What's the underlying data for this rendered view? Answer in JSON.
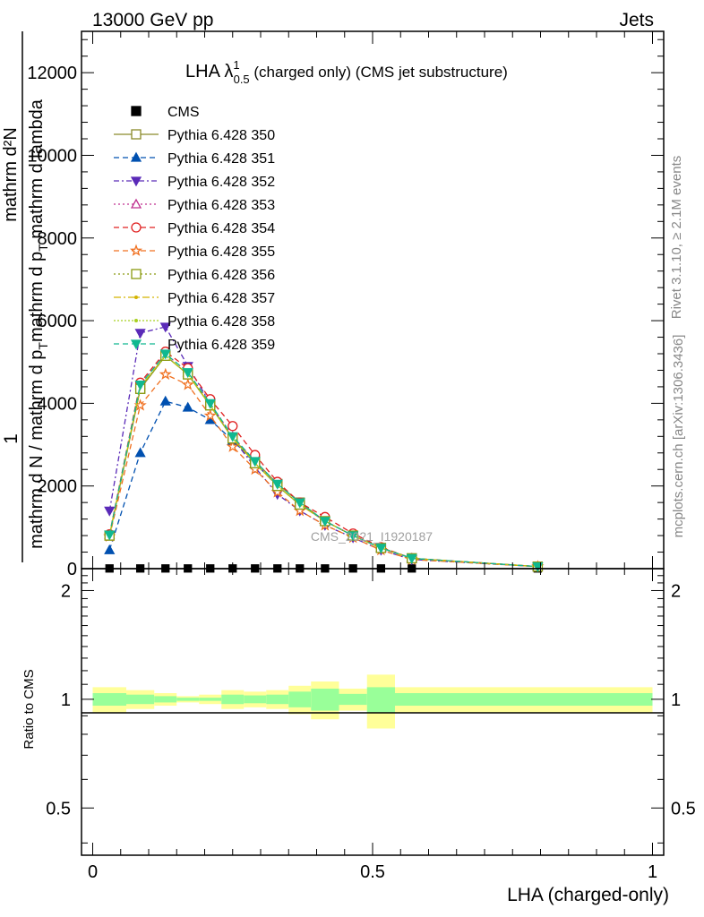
{
  "header": {
    "left": "13000 GeV pp",
    "right": "Jets"
  },
  "side": {
    "rivet": "Rivet 3.1.10, ≥ 2.1M events",
    "mcplots": "mcplots.cern.ch [arXiv:1306.3436]"
  },
  "title": {
    "main": "LHA λ",
    "sup": "1",
    "sub": "0.5",
    "rest": " (charged only) (CMS jet substructure)"
  },
  "ylabel": {
    "one": "1",
    "numerator": "mathrm d²N",
    "denominator_a": "mathrm d N / mathrm d p",
    "denominator_b": "mathrm d p",
    "denominator_sub": "T",
    "denominator_c": " mathrm d lambda",
    "ratio": "Ratio to CMS"
  },
  "xlabel": "LHA (charged-only)",
  "watermark": "CMS_2021_I1920187",
  "colors": {
    "band_inner": "#99ff99",
    "band_outer": "#ffff99",
    "ref": "#000000"
  },
  "chart_data": {
    "type": "line",
    "xlim": [
      -0.02,
      1.02
    ],
    "main_ylim": [
      0,
      13000
    ],
    "ratio_ylim": [
      0.37,
      2.3
    ],
    "main_yticks": [
      0,
      2000,
      4000,
      6000,
      8000,
      10000,
      12000
    ],
    "main_ytick_labels": [
      "0",
      "2000",
      "4000",
      "6000",
      "8000",
      "10000",
      "12000"
    ],
    "ratio_yticks": [
      0.5,
      1,
      2
    ],
    "ratio_ytick_labels": [
      "0.5",
      "1",
      "2"
    ],
    "xticks": [
      0,
      0.5,
      1
    ],
    "xtick_labels": [
      "0",
      "0.5",
      "1"
    ],
    "x": [
      0.03,
      0.085,
      0.13,
      0.17,
      0.21,
      0.25,
      0.29,
      0.33,
      0.37,
      0.415,
      0.465,
      0.515,
      0.57,
      0.795
    ],
    "bin_edges": [
      0.0,
      0.06,
      0.11,
      0.15,
      0.19,
      0.23,
      0.27,
      0.31,
      0.35,
      0.39,
      0.44,
      0.49,
      0.54,
      0.6,
      1.0
    ],
    "ratio_band_inner": [
      0.04,
      0.03,
      0.02,
      0.01,
      0.01,
      0.03,
      0.025,
      0.03,
      0.05,
      0.07,
      0.035,
      0.08,
      0.04,
      0.04
    ],
    "ratio_band_outer": [
      0.08,
      0.06,
      0.04,
      0.02,
      0.03,
      0.06,
      0.05,
      0.06,
      0.09,
      0.12,
      0.07,
      0.17,
      0.08,
      0.08
    ],
    "series": [
      {
        "name": "CMS",
        "color": "#000000",
        "marker": "square-filled",
        "dash": "none",
        "line": false,
        "values": [
          5,
          5,
          5,
          5,
          5,
          5,
          5,
          5,
          5,
          5,
          5,
          5,
          5,
          5
        ]
      },
      {
        "name": "Pythia 6.428 350",
        "color": "#8a8a2a",
        "marker": "square-open",
        "dash": "none",
        "line": true,
        "values": [
          800,
          4350,
          5150,
          4700,
          3950,
          3150,
          2600,
          2050,
          1600,
          1150,
          800,
          500,
          250,
          50
        ]
      },
      {
        "name": "Pythia 6.428 351",
        "color": "#0050b0",
        "marker": "triangle-up-filled",
        "dash": "6,4",
        "line": true,
        "values": [
          450,
          2800,
          4050,
          3900,
          3600,
          3100,
          2550,
          2000,
          1550,
          1150,
          800,
          500,
          250,
          50
        ]
      },
      {
        "name": "Pythia 6.428 352",
        "color": "#5a2ab8",
        "marker": "triangle-down-filled",
        "dash": "6,3,2,3",
        "line": true,
        "values": [
          1400,
          5700,
          5850,
          4900,
          4000,
          3150,
          2450,
          1800,
          1400,
          1050,
          750,
          450,
          220,
          50
        ]
      },
      {
        "name": "Pythia 6.428 353",
        "color": "#c03090",
        "marker": "triangle-up-open",
        "dash": "2,3",
        "line": true,
        "values": [
          820,
          4450,
          5200,
          4750,
          4000,
          3200,
          2600,
          2000,
          1550,
          1150,
          800,
          500,
          250,
          50
        ]
      },
      {
        "name": "Pythia 6.428 354",
        "color": "#e02020",
        "marker": "circle-open",
        "dash": "6,4",
        "line": true,
        "values": [
          830,
          4500,
          5250,
          4850,
          4100,
          3450,
          2750,
          2100,
          1600,
          1250,
          850,
          520,
          250,
          50
        ]
      },
      {
        "name": "Pythia 6.428 355",
        "color": "#f07020",
        "marker": "star-open",
        "dash": "6,4",
        "line": true,
        "values": [
          780,
          3950,
          4700,
          4450,
          3700,
          2950,
          2400,
          1850,
          1400,
          1050,
          750,
          450,
          220,
          50
        ]
      },
      {
        "name": "Pythia 6.428 356",
        "color": "#8a9a10",
        "marker": "square-open",
        "dash": "2,3",
        "line": true,
        "values": [
          800,
          4350,
          5150,
          4700,
          3950,
          3150,
          2550,
          2000,
          1550,
          1150,
          800,
          500,
          250,
          50
        ]
      },
      {
        "name": "Pythia 6.428 357",
        "color": "#d4b400",
        "marker": "dot",
        "dash": "8,3,2,3",
        "line": true,
        "values": [
          810,
          4400,
          5150,
          4700,
          3950,
          3150,
          2550,
          2000,
          1550,
          1150,
          800,
          500,
          250,
          50
        ]
      },
      {
        "name": "Pythia 6.428 358",
        "color": "#a8d020",
        "marker": "dot",
        "dash": "2,2",
        "line": true,
        "values": [
          810,
          4400,
          5150,
          4700,
          3950,
          3150,
          2550,
          2000,
          1550,
          1150,
          800,
          500,
          250,
          50
        ]
      },
      {
        "name": "Pythia 6.428 359",
        "color": "#10b890",
        "marker": "triangle-down-filled",
        "dash": "6,4",
        "line": true,
        "values": [
          820,
          4450,
          5200,
          4750,
          4000,
          3200,
          2600,
          2050,
          1600,
          1150,
          800,
          500,
          250,
          50
        ]
      }
    ]
  }
}
